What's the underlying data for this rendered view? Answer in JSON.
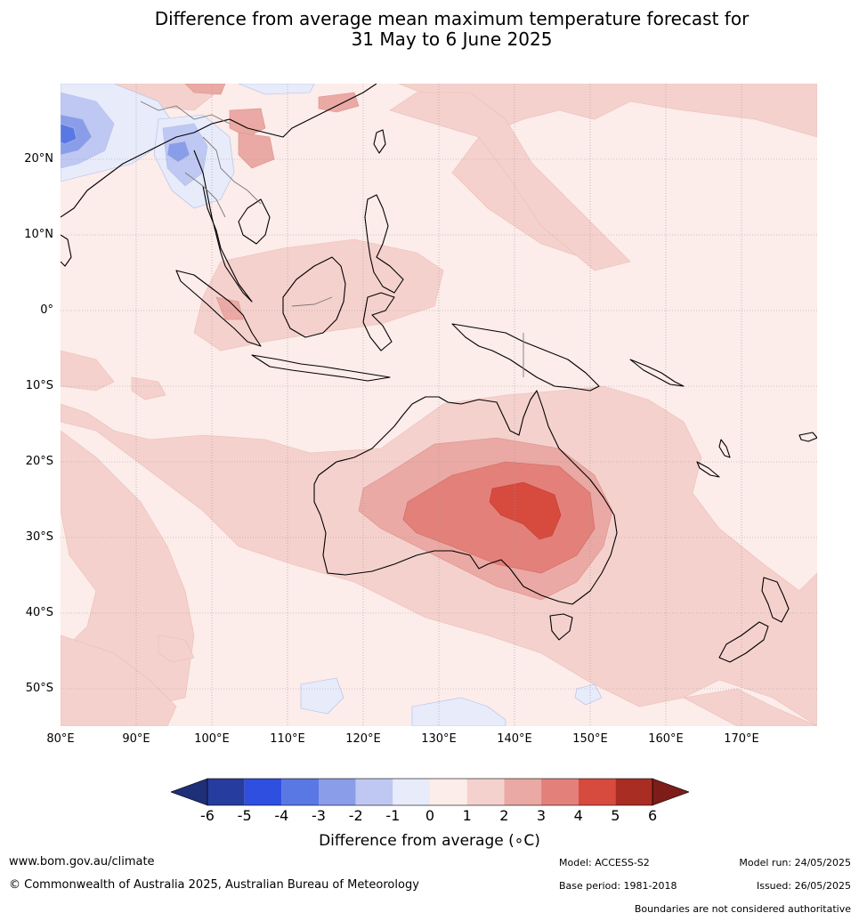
{
  "title_line1": "Difference from average mean maximum temperature forecast for",
  "title_line2": "31 May to 6 June 2025",
  "lat_labels": [
    "20°N",
    "10°N",
    "0°",
    "10°S",
    "20°S",
    "30°S",
    "40°S",
    "50°S"
  ],
  "lon_labels": [
    "80°E",
    "90°E",
    "100°E",
    "110°E",
    "120°E",
    "130°E",
    "140°E",
    "150°E",
    "160°E",
    "170°E"
  ],
  "colorbar": {
    "ticks": [
      "-6",
      "-5",
      "-4",
      "-3",
      "-2",
      "-1",
      "0",
      "1",
      "2",
      "3",
      "4",
      "5",
      "6"
    ],
    "colors": [
      "#263c9e",
      "#2f4fe0",
      "#5a78e3",
      "#8a9de8",
      "#bfc8f2",
      "#e7ebfa",
      "#fcecea",
      "#f5d1cd",
      "#eaa9a4",
      "#e4807a",
      "#d74b3f",
      "#a92d22"
    ],
    "under_color": "#1e2f7a",
    "over_color": "#7d1c18",
    "label": "Difference from average (∘C)"
  },
  "footer": {
    "website": "www.bom.gov.au/climate",
    "copyright": "© Commonwealth of Australia 2025, Australian Bureau of Meteorology",
    "model": "Model: ACCESS-S2",
    "base_period": "Base period: 1981-2018",
    "model_run": "Model run: 24/05/2025",
    "issued": "Issued: 26/05/2025",
    "disclaimer": "Boundaries are not considered authoritative"
  }
}
